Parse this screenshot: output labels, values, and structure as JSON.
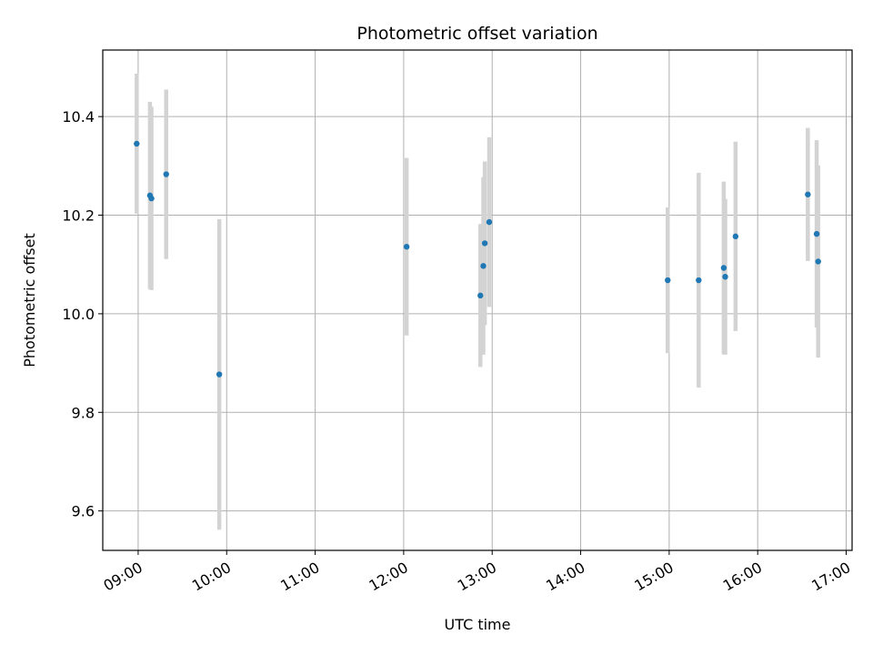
{
  "chart_data": {
    "type": "scatter",
    "title": "Photometric offset variation",
    "xlabel": "UTC time",
    "ylabel": "Photometric offset",
    "x_ticks": [
      "09:00",
      "10:00",
      "11:00",
      "12:00",
      "13:00",
      "14:00",
      "15:00",
      "16:00",
      "17:00"
    ],
    "y_ticks": [
      "9.6",
      "9.8",
      "10.0",
      "10.2",
      "10.4"
    ],
    "xlim": [
      "08:36",
      "17:04"
    ],
    "ylim": [
      9.52,
      10.535
    ],
    "grid": true,
    "colors": {
      "points": "#1f77b4",
      "errorbars": "#d3d3d3",
      "grid": "#b0b0b0"
    },
    "points": [
      {
        "time": "08:59",
        "value": 10.345,
        "error": 0.142
      },
      {
        "time": "09:08",
        "value": 10.24,
        "error": 0.19
      },
      {
        "time": "09:09",
        "value": 10.234,
        "error": 0.186
      },
      {
        "time": "09:19",
        "value": 10.283,
        "error": 0.172
      },
      {
        "time": "09:55",
        "value": 9.877,
        "error": 0.315
      },
      {
        "time": "12:02",
        "value": 10.136,
        "error": 0.18
      },
      {
        "time": "12:52",
        "value": 10.037,
        "error": 0.145
      },
      {
        "time": "12:54",
        "value": 10.097,
        "error": 0.18
      },
      {
        "time": "12:55",
        "value": 10.143,
        "error": 0.166
      },
      {
        "time": "12:58",
        "value": 10.186,
        "error": 0.172
      },
      {
        "time": "14:59",
        "value": 10.068,
        "error": 0.148
      },
      {
        "time": "15:20",
        "value": 10.068,
        "error": 0.218
      },
      {
        "time": "15:37",
        "value": 10.093,
        "error": 0.175
      },
      {
        "time": "15:38",
        "value": 10.075,
        "error": 0.158
      },
      {
        "time": "15:45",
        "value": 10.157,
        "error": 0.192
      },
      {
        "time": "16:34",
        "value": 10.242,
        "error": 0.135
      },
      {
        "time": "16:40",
        "value": 10.162,
        "error": 0.19
      },
      {
        "time": "16:41",
        "value": 10.106,
        "error": 0.195
      }
    ]
  }
}
